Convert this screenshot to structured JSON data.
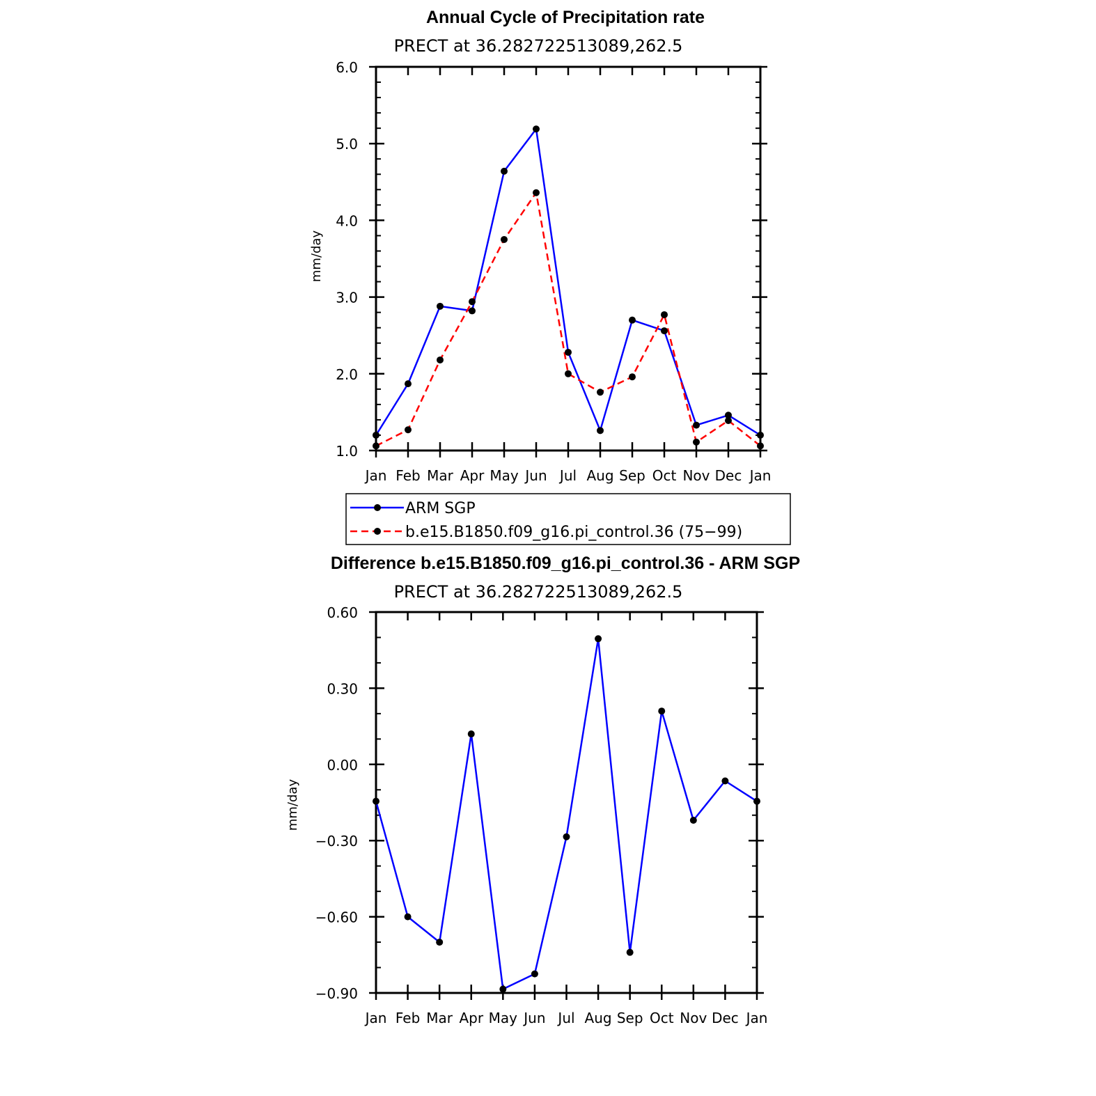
{
  "chart_data": [
    {
      "type": "line",
      "title": "Annual Cycle of Precipitation rate",
      "subtitle": "PRECT at 36.282722513089,262.5",
      "ylabel": "mm/day",
      "ylim": [
        1.0,
        6.0
      ],
      "yticks": [
        "1.0",
        "2.0",
        "3.0",
        "4.0",
        "5.0",
        "6.0"
      ],
      "categories": [
        "Jan",
        "Feb",
        "Mar",
        "Apr",
        "May",
        "Jun",
        "Jul",
        "Aug",
        "Sep",
        "Oct",
        "Nov",
        "Dec",
        "Jan"
      ],
      "series": [
        {
          "name": "ARM SGP",
          "color": "#0000ff",
          "dash": "solid",
          "values": [
            1.2,
            1.87,
            2.88,
            2.82,
            4.64,
            5.19,
            2.28,
            1.26,
            2.7,
            2.56,
            1.33,
            1.46,
            1.2
          ]
        },
        {
          "name": "b.e15.B1850.f09_g16.pi_control.36 (75−99)",
          "color": "#ff0000",
          "dash": "dashed",
          "values": [
            1.06,
            1.27,
            2.18,
            2.94,
            3.75,
            4.36,
            2.0,
            1.76,
            1.96,
            2.77,
            1.11,
            1.39,
            1.06
          ]
        }
      ],
      "legend": "bottom"
    },
    {
      "type": "line",
      "title": "Difference b.e15.B1850.f09_g16.pi_control.36 - ARM SGP",
      "subtitle": "PRECT at 36.282722513089,262.5",
      "ylabel": "mm/day",
      "ylim": [
        -0.9,
        0.6
      ],
      "yticks": [
        "−0.90",
        "−0.60",
        "−0.30",
        "0.00",
        "0.30",
        "0.60"
      ],
      "categories": [
        "Jan",
        "Feb",
        "Mar",
        "Apr",
        "May",
        "Jun",
        "Jul",
        "Aug",
        "Sep",
        "Oct",
        "Nov",
        "Dec",
        "Jan"
      ],
      "series": [
        {
          "color": "#0000ff",
          "dash": "solid",
          "values": [
            -0.145,
            -0.6,
            -0.7,
            0.12,
            -0.885,
            -0.825,
            -0.285,
            0.495,
            -0.74,
            0.21,
            -0.22,
            -0.065,
            -0.145
          ]
        }
      ]
    }
  ]
}
